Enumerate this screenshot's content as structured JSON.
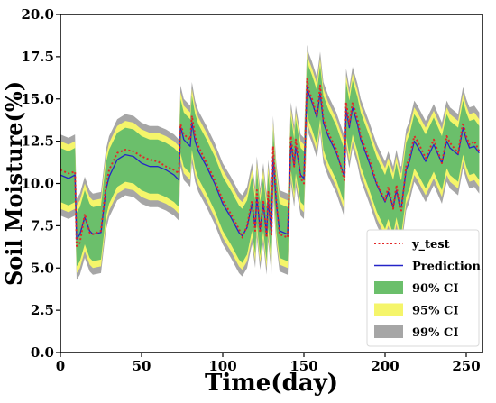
{
  "chart_data": {
    "type": "line",
    "xlabel": "Time(day)",
    "ylabel": "Soil Moisture(%)",
    "xlim": [
      0,
      260
    ],
    "ylim": [
      0,
      20
    ],
    "xticks": [
      0,
      50,
      100,
      150,
      200,
      250
    ],
    "yticks": [
      0.0,
      2.5,
      5.0,
      7.5,
      10.0,
      12.5,
      15.0,
      17.5,
      20.0
    ],
    "ytick_labels": [
      "0.0",
      "2.5",
      "5.0",
      "7.5",
      "10.0",
      "12.5",
      "15.0",
      "17.5",
      "20.0"
    ],
    "grid": false,
    "legend_position": "bottom-right",
    "x": [
      0,
      5,
      9,
      10,
      12,
      15,
      18,
      20,
      25,
      28,
      30,
      35,
      40,
      45,
      50,
      55,
      60,
      65,
      70,
      73,
      74,
      76,
      80,
      81,
      83,
      85,
      90,
      95,
      100,
      105,
      110,
      112,
      115,
      118,
      120,
      121,
      123,
      125,
      127,
      128,
      130,
      131,
      133,
      135,
      140,
      142,
      144,
      145,
      148,
      150,
      152,
      153,
      155,
      158,
      160,
      162,
      165,
      170,
      175,
      176,
      178,
      180,
      183,
      185,
      190,
      195,
      200,
      202,
      205,
      207,
      209,
      210,
      213,
      215,
      218,
      220,
      225,
      230,
      235,
      238,
      240,
      245,
      248,
      250,
      252,
      255,
      258
    ],
    "series": [
      {
        "name": "y_test",
        "color": "#e32626",
        "style": "dotted",
        "values": [
          10.8,
          10.6,
          10.7,
          6.3,
          6.5,
          8.2,
          7.1,
          7.0,
          7.2,
          9.8,
          10.8,
          11.8,
          12.0,
          11.9,
          11.6,
          11.4,
          11.3,
          11.0,
          10.8,
          10.6,
          13.5,
          12.9,
          12.6,
          14.0,
          12.8,
          12.2,
          11.2,
          10.2,
          9.0,
          8.2,
          7.3,
          6.8,
          7.5,
          9.0,
          7.2,
          9.6,
          7.1,
          9.0,
          6.8,
          9.5,
          6.9,
          12.2,
          9.0,
          7.0,
          6.8,
          12.8,
          11.0,
          12.6,
          10.3,
          10.0,
          16.2,
          15.5,
          15.0,
          14.0,
          15.8,
          13.8,
          13.0,
          12.0,
          10.2,
          14.8,
          13.5,
          14.8,
          13.8,
          12.8,
          11.5,
          10.0,
          9.0,
          9.8,
          8.5,
          9.9,
          8.6,
          8.4,
          11.0,
          11.5,
          12.8,
          12.5,
          11.5,
          12.6,
          11.2,
          12.8,
          12.4,
          11.8,
          13.6,
          12.8,
          12.3,
          12.5,
          11.9
        ]
      },
      {
        "name": "Prediction",
        "color": "#2424c8",
        "style": "solid",
        "values": [
          10.5,
          10.3,
          10.5,
          6.7,
          7.0,
          8.0,
          7.2,
          7.0,
          7.1,
          9.6,
          10.4,
          11.4,
          11.7,
          11.6,
          11.2,
          11.0,
          11.0,
          10.8,
          10.5,
          10.2,
          13.4,
          12.6,
          12.2,
          13.6,
          12.5,
          11.9,
          11.0,
          10.0,
          8.8,
          8.0,
          7.1,
          6.9,
          7.4,
          8.8,
          7.4,
          9.2,
          7.3,
          8.8,
          7.0,
          9.0,
          7.0,
          11.6,
          8.8,
          7.2,
          7.0,
          12.4,
          11.0,
          12.2,
          10.5,
          10.3,
          15.8,
          15.3,
          14.8,
          13.9,
          15.4,
          13.6,
          12.8,
          11.8,
          10.4,
          14.4,
          13.3,
          14.5,
          13.5,
          12.6,
          11.3,
          9.9,
          8.9,
          9.5,
          8.6,
          9.6,
          8.7,
          8.6,
          10.8,
          11.3,
          12.5,
          12.2,
          11.3,
          12.3,
          11.2,
          12.5,
          12.1,
          11.7,
          13.3,
          12.6,
          12.1,
          12.2,
          11.8
        ]
      }
    ],
    "confidence_bands": [
      {
        "name": "99% CI",
        "color": "#a6a6a6",
        "half_width": 2.4
      },
      {
        "name": "95% CI",
        "color": "#f5f56a",
        "half_width": 2.0
      },
      {
        "name": "90% CI",
        "color": "#6bbf6b",
        "half_width": 1.6
      }
    ],
    "legend": [
      "y_test",
      "Prediction",
      "90% CI",
      "95% CI",
      "99% CI"
    ]
  }
}
